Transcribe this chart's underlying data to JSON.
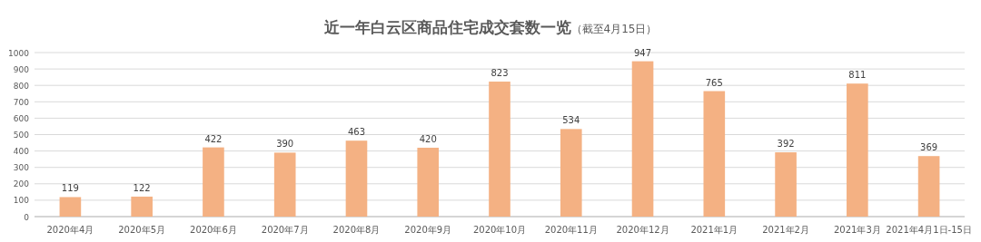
{
  "chart_data": {
    "type": "bar",
    "title": "近一年白云区商品住宅成交套数一览",
    "subtitle": "（截至4月15日）",
    "categories": [
      "2020年4月",
      "2020年5月",
      "2020年6月",
      "2020年7月",
      "2020年8月",
      "2020年9月",
      "2020年10月",
      "2020年11月",
      "2020年12月",
      "2021年1月",
      "2021年2月",
      "2021年3月",
      "2021年4月1日-15日"
    ],
    "values": [
      119,
      122,
      422,
      390,
      463,
      420,
      823,
      534,
      947,
      765,
      392,
      811,
      369
    ],
    "color": "#f4b183",
    "ylim": [
      0,
      1000
    ],
    "yticks": [
      0,
      100,
      200,
      300,
      400,
      500,
      600,
      700,
      800,
      900,
      1000
    ],
    "grid": "y",
    "data_labels": true
  }
}
